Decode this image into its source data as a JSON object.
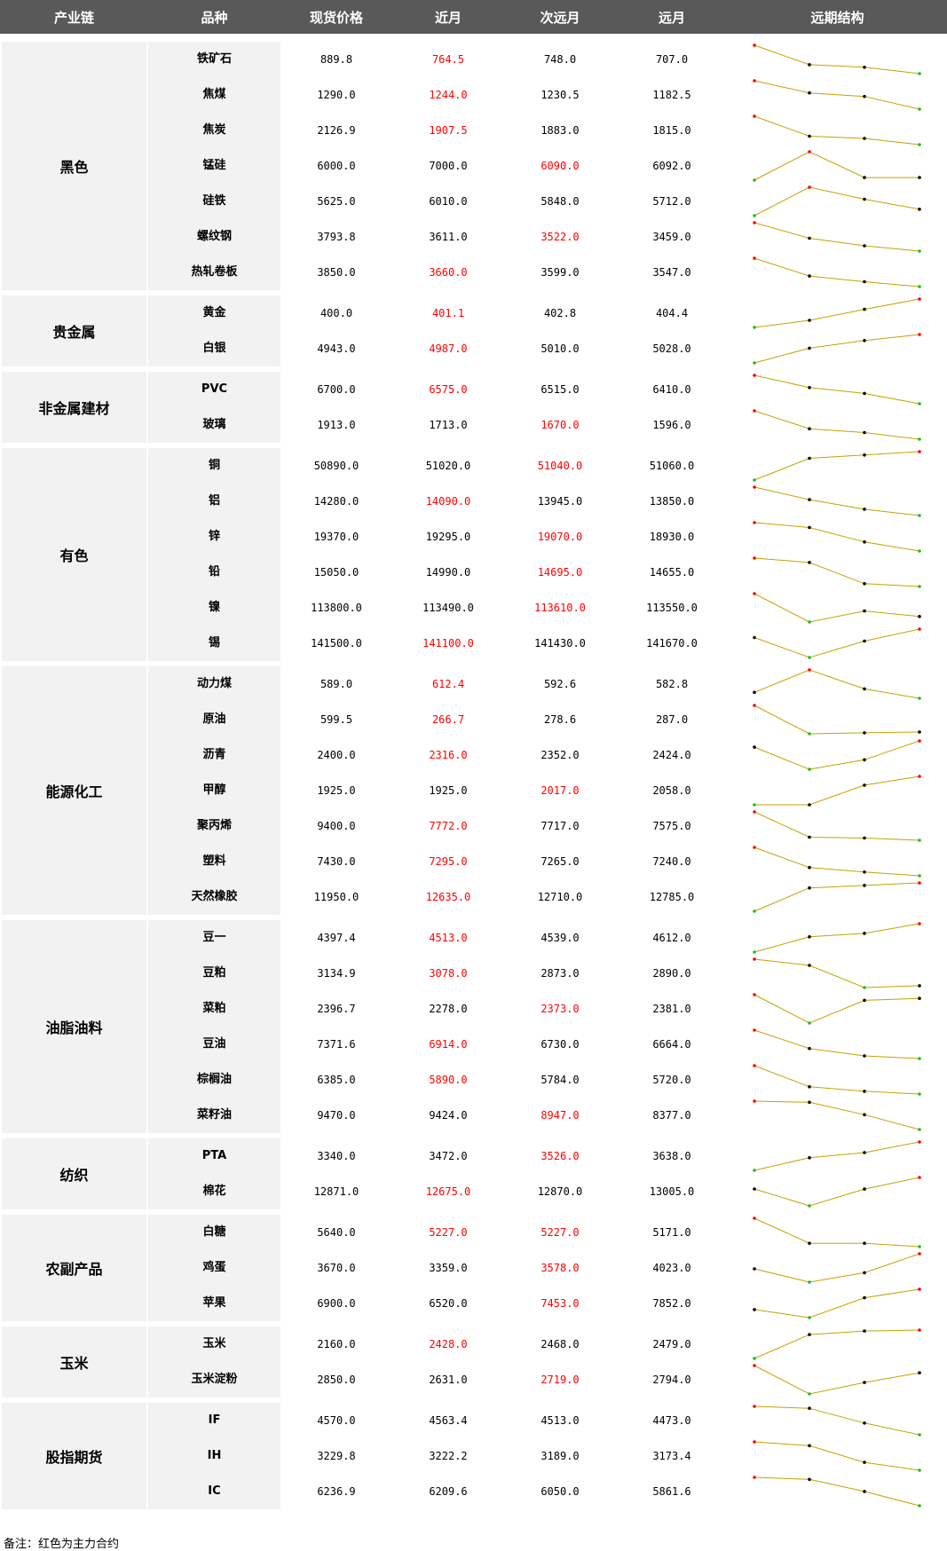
{
  "headers": [
    "产业链",
    "品种",
    "现货价格",
    "近月",
    "次远月",
    "远月",
    "远期结构"
  ],
  "note": "备注：红色为主力合约",
  "colors": {
    "main": "#ff0000",
    "line": "#c8a000",
    "high": "#ff0000",
    "low": "#22bb22",
    "mid": "#000000"
  },
  "groups": [
    {
      "name": "黑色",
      "rows": [
        {
          "name": "铁矿石",
          "spot": "889.8",
          "near": "764.5",
          "next": "748.0",
          "far": "707.0",
          "main": "near"
        },
        {
          "name": "焦煤",
          "spot": "1290.0",
          "near": "1244.0",
          "next": "1230.5",
          "far": "1182.5",
          "main": "near"
        },
        {
          "name": "焦炭",
          "spot": "2126.9",
          "near": "1907.5",
          "next": "1883.0",
          "far": "1815.0",
          "main": "near"
        },
        {
          "name": "锰硅",
          "spot": "6000.0",
          "near": "7000.0",
          "next": "6090.0",
          "far": "6092.0",
          "main": "next"
        },
        {
          "name": "硅铁",
          "spot": "5625.0",
          "near": "6010.0",
          "next": "5848.0",
          "far": "5712.0",
          "main": ""
        },
        {
          "name": "螺纹钢",
          "spot": "3793.8",
          "near": "3611.0",
          "next": "3522.0",
          "far": "3459.0",
          "main": "next"
        },
        {
          "name": "热轧卷板",
          "spot": "3850.0",
          "near": "3660.0",
          "next": "3599.0",
          "far": "3547.0",
          "main": "near"
        }
      ]
    },
    {
      "name": "贵金属",
      "rows": [
        {
          "name": "黄金",
          "spot": "400.0",
          "near": "401.1",
          "next": "402.8",
          "far": "404.4",
          "main": "near"
        },
        {
          "name": "白银",
          "spot": "4943.0",
          "near": "4987.0",
          "next": "5010.0",
          "far": "5028.0",
          "main": "near"
        }
      ]
    },
    {
      "name": "非金属建材",
      "rows": [
        {
          "name": "PVC",
          "spot": "6700.0",
          "near": "6575.0",
          "next": "6515.0",
          "far": "6410.0",
          "main": "near"
        },
        {
          "name": "玻璃",
          "spot": "1913.0",
          "near": "1713.0",
          "next": "1670.0",
          "far": "1596.0",
          "main": "next"
        }
      ]
    },
    {
      "name": "有色",
      "rows": [
        {
          "name": "铜",
          "spot": "50890.0",
          "near": "51020.0",
          "next": "51040.0",
          "far": "51060.0",
          "main": "next"
        },
        {
          "name": "铝",
          "spot": "14280.0",
          "near": "14090.0",
          "next": "13945.0",
          "far": "13850.0",
          "main": "near"
        },
        {
          "name": "锌",
          "spot": "19370.0",
          "near": "19295.0",
          "next": "19070.0",
          "far": "18930.0",
          "main": "next"
        },
        {
          "name": "铅",
          "spot": "15050.0",
          "near": "14990.0",
          "next": "14695.0",
          "far": "14655.0",
          "main": "next"
        },
        {
          "name": "镍",
          "spot": "113800.0",
          "near": "113490.0",
          "next": "113610.0",
          "far": "113550.0",
          "main": "next"
        },
        {
          "name": "锡",
          "spot": "141500.0",
          "near": "141100.0",
          "next": "141430.0",
          "far": "141670.0",
          "main": "near"
        }
      ]
    },
    {
      "name": "能源化工",
      "rows": [
        {
          "name": "动力煤",
          "spot": "589.0",
          "near": "612.4",
          "next": "592.6",
          "far": "582.8",
          "main": "near"
        },
        {
          "name": "原油",
          "spot": "599.5",
          "near": "266.7",
          "next": "278.6",
          "far": "287.0",
          "main": "near"
        },
        {
          "name": "沥青",
          "spot": "2400.0",
          "near": "2316.0",
          "next": "2352.0",
          "far": "2424.0",
          "main": "near"
        },
        {
          "name": "甲醇",
          "spot": "1925.0",
          "near": "1925.0",
          "next": "2017.0",
          "far": "2058.0",
          "main": "next"
        },
        {
          "name": "聚丙烯",
          "spot": "9400.0",
          "near": "7772.0",
          "next": "7717.0",
          "far": "7575.0",
          "main": "near"
        },
        {
          "name": "塑料",
          "spot": "7430.0",
          "near": "7295.0",
          "next": "7265.0",
          "far": "7240.0",
          "main": "near"
        },
        {
          "name": "天然橡胶",
          "spot": "11950.0",
          "near": "12635.0",
          "next": "12710.0",
          "far": "12785.0",
          "main": "near"
        }
      ]
    },
    {
      "name": "油脂油料",
      "rows": [
        {
          "name": "豆一",
          "spot": "4397.4",
          "near": "4513.0",
          "next": "4539.0",
          "far": "4612.0",
          "main": "near"
        },
        {
          "name": "豆粕",
          "spot": "3134.9",
          "near": "3078.0",
          "next": "2873.0",
          "far": "2890.0",
          "main": "near"
        },
        {
          "name": "菜粕",
          "spot": "2396.7",
          "near": "2278.0",
          "next": "2373.0",
          "far": "2381.0",
          "main": "next"
        },
        {
          "name": "豆油",
          "spot": "7371.6",
          "near": "6914.0",
          "next": "6730.0",
          "far": "6664.0",
          "main": "near"
        },
        {
          "name": "棕榈油",
          "spot": "6385.0",
          "near": "5890.0",
          "next": "5784.0",
          "far": "5720.0",
          "main": "near"
        },
        {
          "name": "菜籽油",
          "spot": "9470.0",
          "near": "9424.0",
          "next": "8947.0",
          "far": "8377.0",
          "main": "next"
        }
      ]
    },
    {
      "name": "纺织",
      "rows": [
        {
          "name": "PTA",
          "spot": "3340.0",
          "near": "3472.0",
          "next": "3526.0",
          "far": "3638.0",
          "main": "next"
        },
        {
          "name": "棉花",
          "spot": "12871.0",
          "near": "12675.0",
          "next": "12870.0",
          "far": "13005.0",
          "main": "near"
        }
      ]
    },
    {
      "name": "农副产品",
      "rows": [
        {
          "name": "白糖",
          "spot": "5640.0",
          "near": "5227.0",
          "next": "5227.0",
          "far": "5171.0",
          "main": "both"
        },
        {
          "name": "鸡蛋",
          "spot": "3670.0",
          "near": "3359.0",
          "next": "3578.0",
          "far": "4023.0",
          "main": "next"
        },
        {
          "name": "苹果",
          "spot": "6900.0",
          "near": "6520.0",
          "next": "7453.0",
          "far": "7852.0",
          "main": "next"
        }
      ]
    },
    {
      "name": "玉米",
      "rows": [
        {
          "name": "玉米",
          "spot": "2160.0",
          "near": "2428.0",
          "next": "2468.0",
          "far": "2479.0",
          "main": "near"
        },
        {
          "name": "玉米淀粉",
          "spot": "2850.0",
          "near": "2631.0",
          "next": "2719.0",
          "far": "2794.0",
          "main": "next"
        }
      ]
    },
    {
      "name": "股指期货",
      "rows": [
        {
          "name": "IF",
          "spot": "4570.0",
          "near": "4563.4",
          "next": "4513.0",
          "far": "4473.0",
          "main": ""
        },
        {
          "name": "IH",
          "spot": "3229.8",
          "near": "3222.2",
          "next": "3189.0",
          "far": "3173.4",
          "main": ""
        },
        {
          "name": "IC",
          "spot": "6236.9",
          "near": "6209.6",
          "next": "6050.0",
          "far": "5861.6",
          "main": ""
        }
      ]
    }
  ]
}
